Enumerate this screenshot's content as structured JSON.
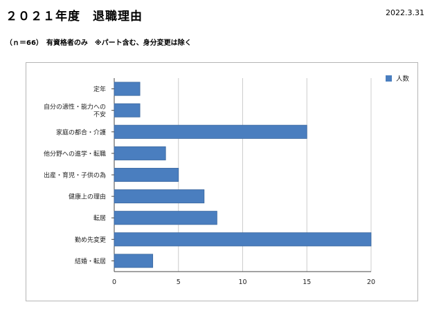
{
  "header": {
    "title": "２０２１年度　退職理由",
    "date": "2022.3.31",
    "subtitle": "（ｎ＝66）　有資格者のみ　※パート含む、身分変更は除く"
  },
  "chart_data": {
    "type": "bar",
    "orientation": "horizontal",
    "categories": [
      "定年",
      [
        "自分の適性・能力への",
        "不安"
      ],
      "家庭の都合・介護",
      "他分野への進学・転職",
      "出産・育児・子供の為",
      "健康上の理由",
      "転居",
      "勤め先変更",
      "結婚・転居"
    ],
    "series": [
      {
        "name": "人数",
        "values": [
          2,
          2,
          15,
          4,
          5,
          7,
          8,
          20,
          3
        ]
      }
    ],
    "xlim": [
      0,
      20
    ],
    "xticks": [
      0,
      5,
      10,
      15,
      20
    ],
    "grid": true,
    "legend": "top-right",
    "colors": {
      "bar": "#4a7ebf",
      "bar_stroke": "#3a679e",
      "grid": "#cccccc",
      "axis": "#444444"
    }
  }
}
